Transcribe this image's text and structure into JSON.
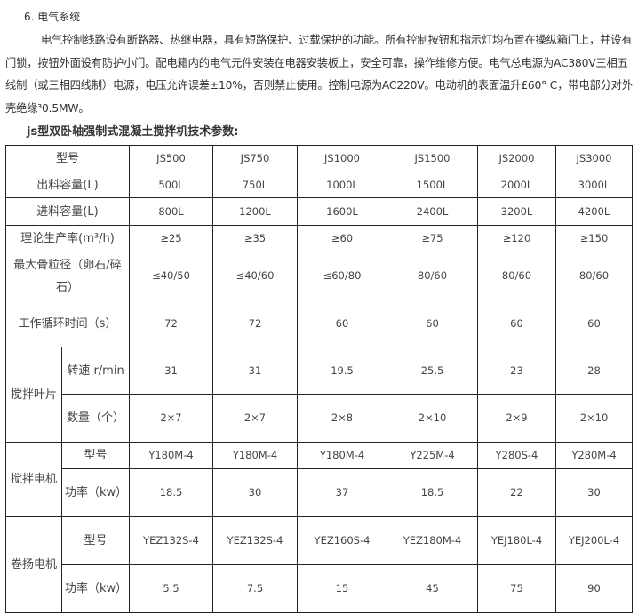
{
  "section_title": "6. 电气系统",
  "paragraph": "电气控制线路设有断路器、热继电器，具有短路保护、过载保护的功能。所有控制按钮和指示灯均布置在操纵箱门上，并设有门锁，按钮外面设有防护小门。配电箱内的电气元件安装在电器安装板上，安全可靠，操作维修方便。电气总电源为AC380V三相五线制（或三相四线制）电源，电压允许误差±10%，否则禁止使用。控制电源为AC220V。电动机的表面温升£60° C，带电部分对外壳绝缘³0.5MW。",
  "table_heading": "js型双卧轴强制式混凝土搅拌机技术参数:",
  "table": {
    "header": {
      "label": "型号",
      "values": [
        "JS500",
        "JS750",
        "JS1000",
        "JS1500",
        "JS2000",
        "JS3000"
      ]
    },
    "rows": [
      {
        "label": "出料容量(L)",
        "values": [
          "500L",
          "750L",
          "1000L",
          "1500L",
          "2000L",
          "3000L"
        ]
      },
      {
        "label": "进料容量(L)",
        "values": [
          "800L",
          "1200L",
          "1600L",
          "2400L",
          "3200L",
          "4200L"
        ]
      },
      {
        "label": "理论生产率(m³/h)",
        "values": [
          "≥25",
          "≥35",
          "≥60",
          "≥75",
          "≥120",
          "≥150"
        ]
      },
      {
        "label": "最大骨粒径（卵石/碎石）",
        "values": [
          "≤40/50",
          "≤40/60",
          "≤60/80",
          "80/60",
          "80/60",
          "80/60"
        ]
      },
      {
        "label": "工作循环时间（s）",
        "values": [
          "72",
          "72",
          "60",
          "60",
          "60",
          "60"
        ]
      }
    ],
    "groups": [
      {
        "label": "搅拌叶片",
        "rows": [
          {
            "label": "转速 r/min",
            "values": [
              "31",
              "31",
              "19.5",
              "25.5",
              "23",
              "28"
            ]
          },
          {
            "label": "数量（个）",
            "values": [
              "2×7",
              "2×7",
              "2×8",
              "2×10",
              "2×9",
              "2×10"
            ]
          }
        ]
      },
      {
        "label": "搅拌电机",
        "rows": [
          {
            "label": "型号",
            "values": [
              "Y180M-4",
              "Y180M-4",
              "Y180M-4",
              "Y225M-4",
              "Y280S-4",
              "Y280M-4"
            ]
          },
          {
            "label": "功率（kw）",
            "values": [
              "18.5",
              "30",
              "37",
              "18.5",
              "22",
              "30"
            ]
          }
        ]
      },
      {
        "label": "卷扬电机",
        "rows": [
          {
            "label": "型号",
            "values": [
              "YEZ132S-4",
              "YEZ132S-4",
              "YEZ160S-4",
              "YEZ180M-4",
              "YEJ180L-4",
              "YEJ200L-4"
            ]
          },
          {
            "label": "功率（kw）",
            "values": [
              "5.5",
              "7.5",
              "15",
              "45",
              "75",
              "90"
            ]
          }
        ]
      }
    ]
  }
}
